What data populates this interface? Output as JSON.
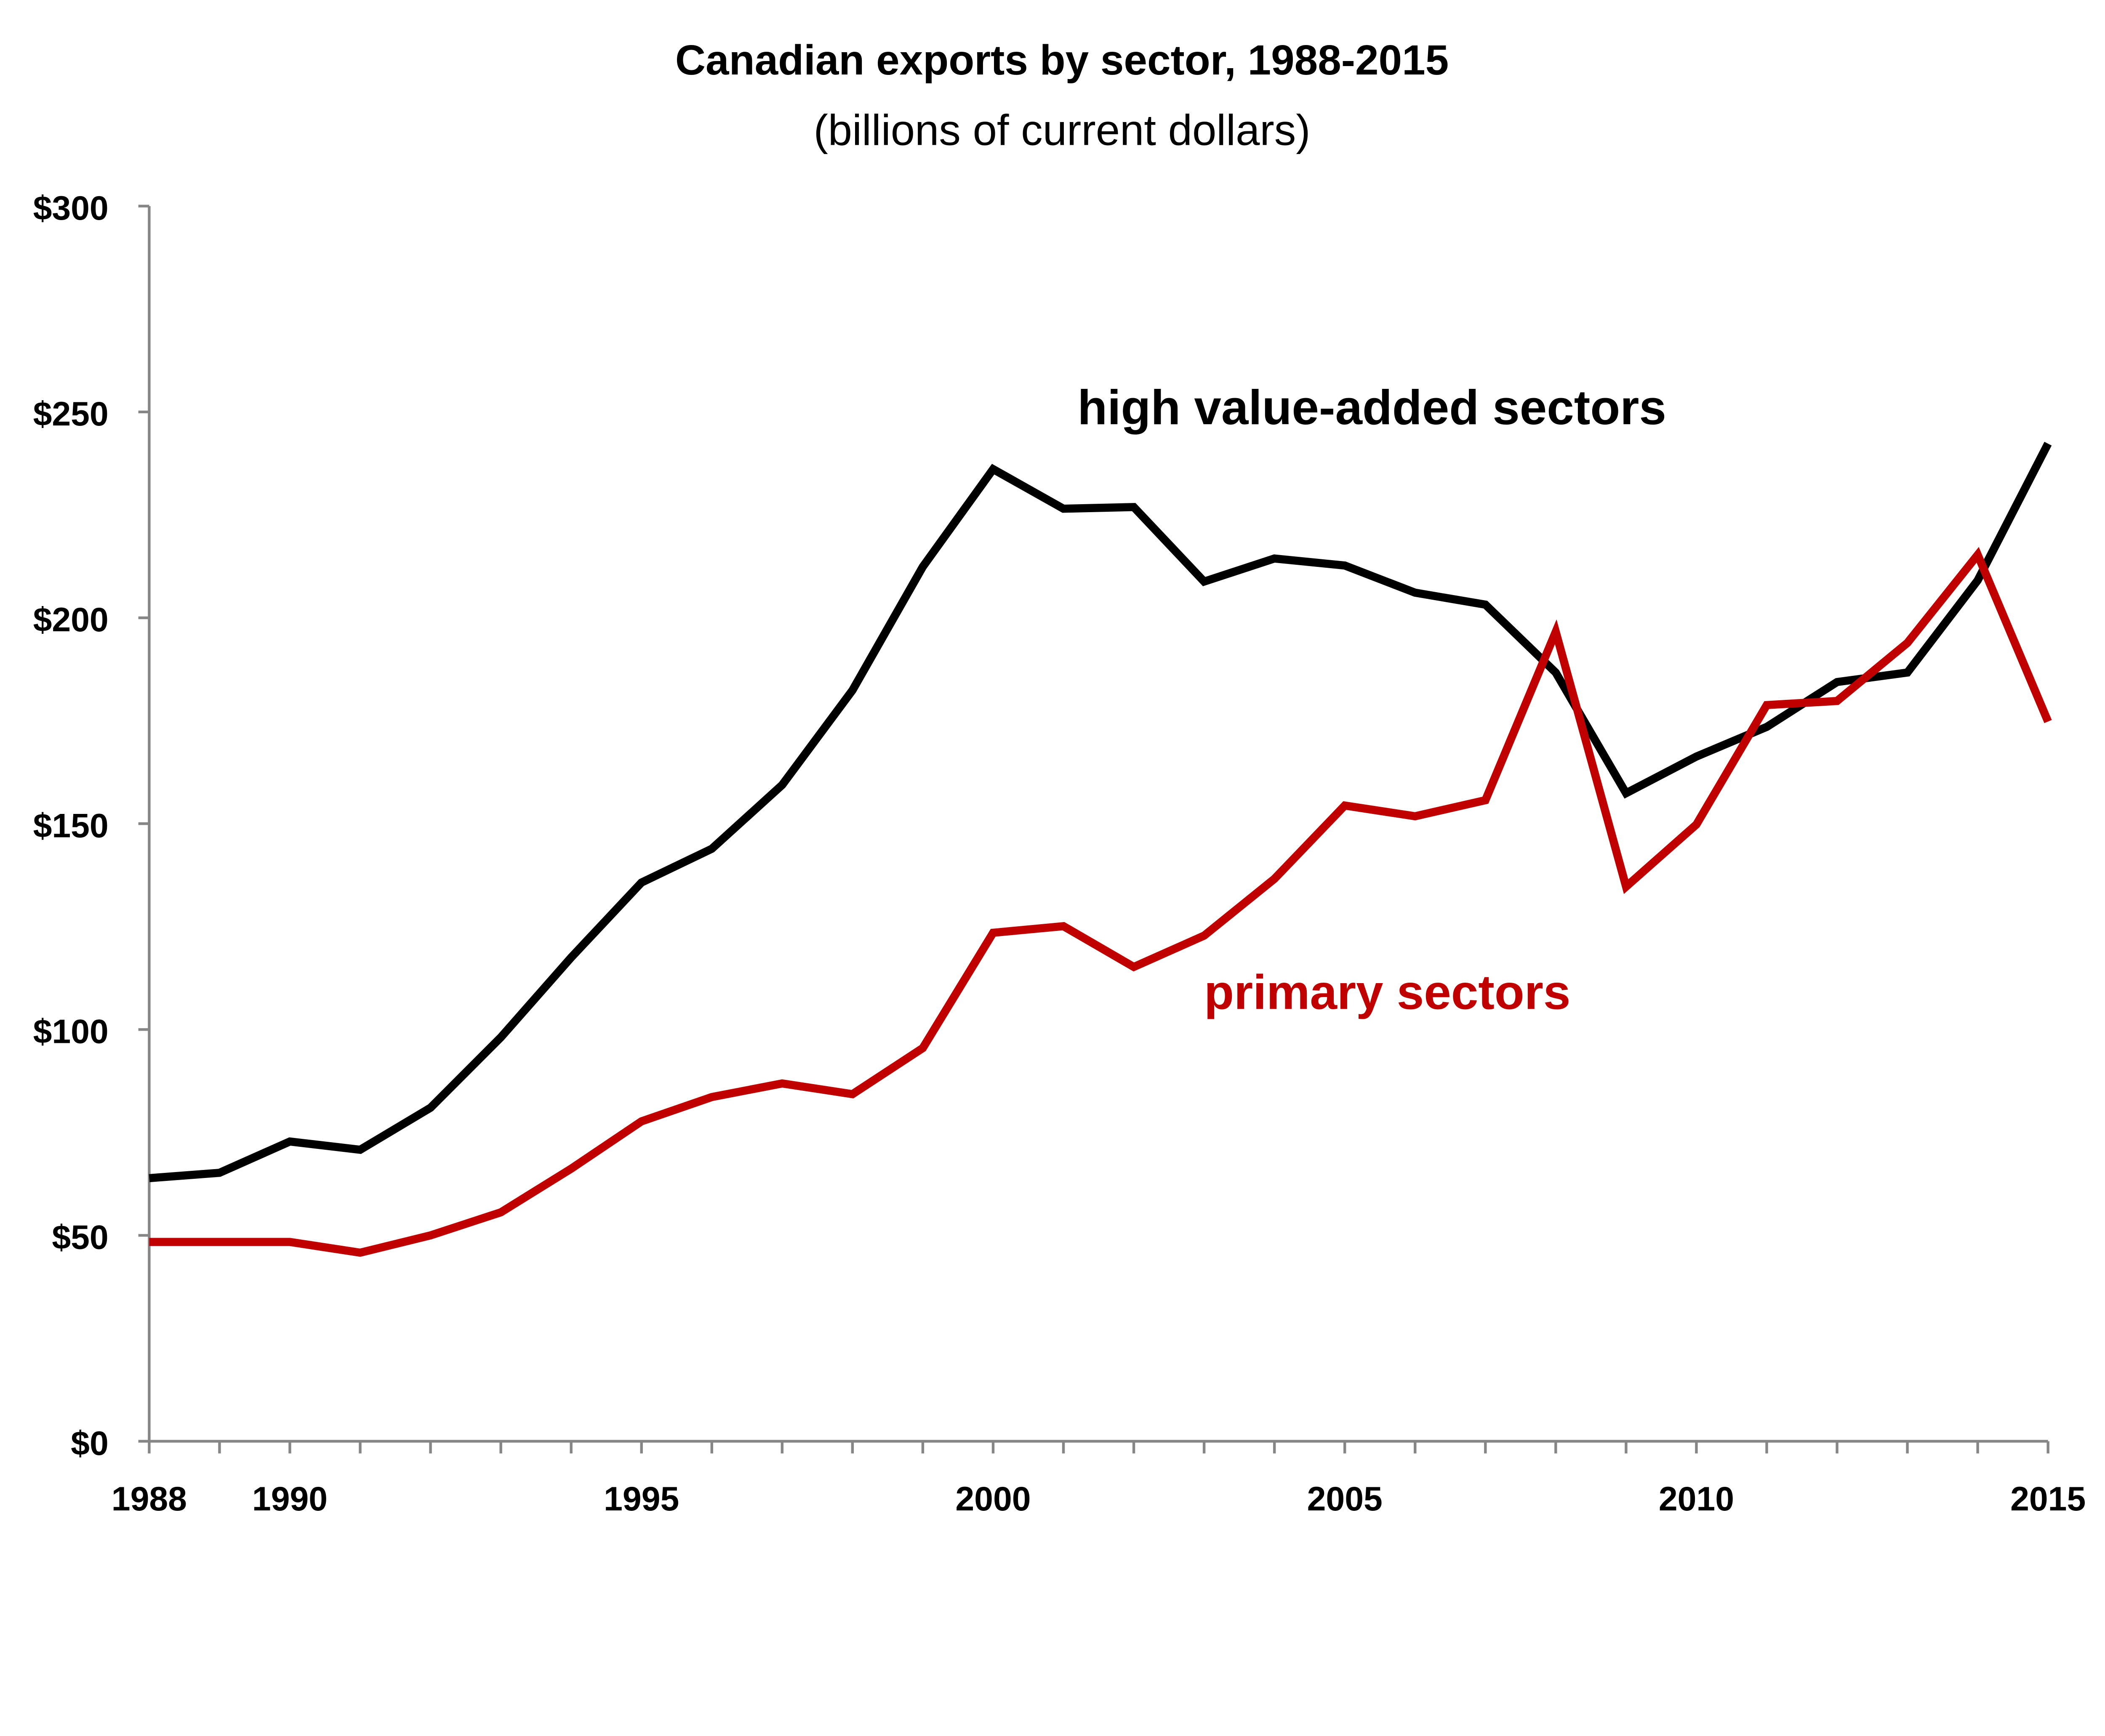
{
  "chart_data": {
    "type": "line",
    "title": "Canadian exports by sector, 1988-2015",
    "subtitle": "(billions of current dollars)",
    "xlabel": "",
    "ylabel": "",
    "xlim": [
      1988,
      2015
    ],
    "ylim": [
      0,
      300
    ],
    "grid": false,
    "legend": "inline labels",
    "x": [
      1988,
      1989,
      1990,
      1991,
      1992,
      1993,
      1994,
      1995,
      1996,
      1997,
      1998,
      1999,
      2000,
      2001,
      2002,
      2003,
      2004,
      2005,
      2006,
      2007,
      2008,
      2009,
      2010,
      2011,
      2012,
      2013,
      2014,
      2015
    ],
    "x_tick_labels": [
      {
        "value": 1988,
        "label": "1988"
      },
      {
        "value": 1990,
        "label": "1990"
      },
      {
        "value": 1995,
        "label": "1995"
      },
      {
        "value": 2000,
        "label": "2000"
      },
      {
        "value": 2005,
        "label": "2005"
      },
      {
        "value": 2010,
        "label": "2010"
      },
      {
        "value": 2015,
        "label": "2015"
      }
    ],
    "y_tick_labels": [
      {
        "value": 0,
        "label": "$0"
      },
      {
        "value": 50,
        "label": "$50"
      },
      {
        "value": 100,
        "label": "$100"
      },
      {
        "value": 150,
        "label": "$150"
      },
      {
        "value": 200,
        "label": "$200"
      },
      {
        "value": 250,
        "label": "$250"
      },
      {
        "value": 300,
        "label": "$300"
      }
    ],
    "series": [
      {
        "name": "high value-added sectors",
        "color": "#000000",
        "label_at": {
          "x": 2001.2,
          "y": 247
        },
        "values": [
          63.9,
          65.2,
          72.8,
          70.8,
          81.0,
          98.1,
          117.5,
          135.7,
          143.9,
          159.4,
          182.4,
          212.4,
          236.1,
          226.5,
          226.9,
          208.8,
          214.4,
          212.7,
          206.1,
          203.2,
          186.7,
          157.4,
          166.3,
          173.5,
          184.4,
          186.7,
          209.1,
          242.3
        ]
      },
      {
        "name": "primary sectors",
        "color": "#C00000",
        "label_at": {
          "x": 2003,
          "y": 105
        },
        "values": [
          48.4,
          48.4,
          48.4,
          45.8,
          50.0,
          55.6,
          66.2,
          77.7,
          83.6,
          86.9,
          84.3,
          95.5,
          123.5,
          125.1,
          115.2,
          122.8,
          136.6,
          154.4,
          151.8,
          155.7,
          196.6,
          134.7,
          149.8,
          178.8,
          179.8,
          193.9,
          215.3,
          174.8
        ]
      }
    ]
  }
}
